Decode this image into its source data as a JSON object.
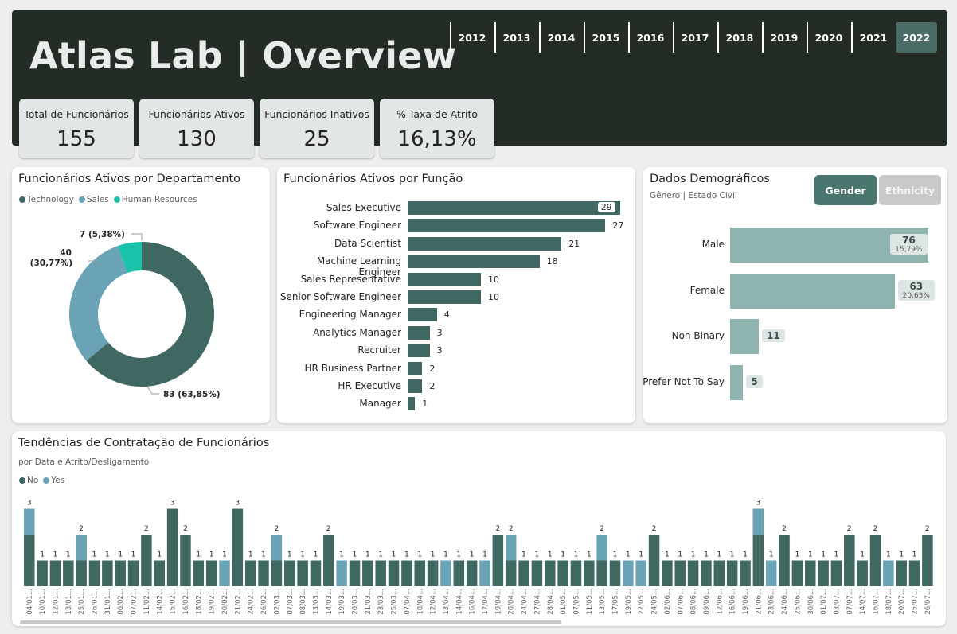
{
  "header": {
    "title": "Atlas Lab | Overview",
    "years": [
      "2012",
      "2013",
      "2014",
      "2015",
      "2016",
      "2017",
      "2018",
      "2019",
      "2020",
      "2021",
      "2022"
    ],
    "selected_year": "2022"
  },
  "kpis": [
    {
      "label": "Total de Funcionários",
      "value": "155"
    },
    {
      "label": "Funcionários Ativos",
      "value": "130"
    },
    {
      "label": "Funcionários Inativos",
      "value": "25"
    },
    {
      "label": "% Taxa de Atrito",
      "value": "16,13%"
    }
  ],
  "colors": {
    "dark": "#3f6863",
    "light": "#6aa2b6",
    "teal": "#19c2a8",
    "demo": "#8fb3ae",
    "header": "#232d26"
  },
  "dept_card": {
    "title": "Funcionários Ativos por Departamento"
  },
  "role_card": {
    "title": "Funcionários Ativos por Função"
  },
  "demo_card": {
    "title": "Dados Demográficos",
    "subtitle": "Gênero | Estado Civil",
    "tab_gender": "Gender",
    "tab_ethnicity": "Ethnicity"
  },
  "hire_card": {
    "title": "Tendências de Contratação de Funcionários",
    "subtitle": "por Data e Atrito/Desligamento"
  },
  "chart_data": [
    {
      "type": "pie",
      "title": "Funcionários Ativos por Departamento",
      "legend": [
        "Technology",
        "Sales",
        "Human Resources"
      ],
      "slices": [
        {
          "name": "Technology",
          "value": 83,
          "label": "83 (63,85%)"
        },
        {
          "name": "Sales",
          "value": 40,
          "label_line1": "40",
          "label_line2": "(30,77%)"
        },
        {
          "name": "Human Resources",
          "value": 7,
          "label": "7 (5,38%)"
        }
      ]
    },
    {
      "type": "bar",
      "title": "Funcionários Ativos por Função",
      "categories": [
        "Sales Executive",
        "Software Engineer",
        "Data Scientist",
        "Machine Learning Engineer",
        "Sales Representative",
        "Senior Software Engineer",
        "Engineering Manager",
        "Analytics Manager",
        "Recruiter",
        "HR Business Partner",
        "HR Executive",
        "Manager"
      ],
      "values": [
        29,
        27,
        21,
        18,
        10,
        10,
        4,
        3,
        3,
        2,
        2,
        1
      ]
    },
    {
      "type": "bar",
      "title": "Dados Demográficos",
      "categories": [
        "Male",
        "Female",
        "Non-Binary",
        "Prefer Not To Say"
      ],
      "values": [
        76,
        63,
        11,
        5
      ],
      "percent_labels": [
        "15,79%",
        "20,63%",
        "",
        ""
      ]
    },
    {
      "type": "bar",
      "title": "Tendências de Contratação de Funcionários",
      "legend": [
        "No",
        "Yes"
      ],
      "categories": [
        "04/01...",
        "10/01...",
        "12/01...",
        "13/01...",
        "25/01...",
        "26/01...",
        "31/01...",
        "06/02...",
        "07/02...",
        "11/02...",
        "14/02...",
        "15/02...",
        "16/02...",
        "18/02...",
        "19/02...",
        "20/02...",
        "21/02...",
        "24/02...",
        "26/02...",
        "02/03...",
        "07/03...",
        "08/03...",
        "13/03...",
        "14/03...",
        "19/03...",
        "20/03...",
        "21/03...",
        "23/03...",
        "25/03...",
        "07/04...",
        "10/04...",
        "12/04...",
        "13/04...",
        "14/04...",
        "16/04...",
        "17/04...",
        "19/04...",
        "20/04...",
        "24/04...",
        "27/04...",
        "28/04...",
        "01/05...",
        "07/05...",
        "11/05...",
        "13/05...",
        "17/05...",
        "19/05...",
        "22/05...",
        "24/05...",
        "02/06...",
        "07/06...",
        "08/06...",
        "09/06...",
        "12/06...",
        "16/06...",
        "19/06...",
        "21/06...",
        "23/06...",
        "24/06...",
        "25/06...",
        "30/06...",
        "01/07...",
        "03/07...",
        "07/07...",
        "14/07...",
        "16/07...",
        "18/07...",
        "20/07...",
        "25/07...",
        "26/07..."
      ],
      "series": [
        {
          "name": "No",
          "values": [
            2,
            1,
            1,
            1,
            1,
            1,
            1,
            1,
            1,
            2,
            1,
            3,
            2,
            1,
            1,
            0,
            3,
            1,
            1,
            1,
            1,
            1,
            1,
            2,
            0,
            1,
            1,
            1,
            1,
            1,
            1,
            1,
            0,
            1,
            1,
            0,
            2,
            1,
            1,
            1,
            1,
            1,
            1,
            1,
            1,
            1,
            0,
            0,
            2,
            1,
            1,
            1,
            1,
            1,
            1,
            1,
            2,
            0,
            2,
            1,
            1,
            1,
            1,
            2,
            1,
            2,
            0,
            1,
            1,
            2
          ]
        },
        {
          "name": "Yes",
          "values": [
            1,
            0,
            0,
            0,
            1,
            0,
            0,
            0,
            0,
            0,
            0,
            0,
            0,
            0,
            0,
            1,
            0,
            0,
            0,
            1,
            0,
            0,
            0,
            0,
            1,
            0,
            0,
            0,
            0,
            0,
            0,
            0,
            1,
            0,
            0,
            1,
            0,
            1,
            0,
            0,
            0,
            0,
            0,
            0,
            1,
            0,
            1,
            1,
            0,
            0,
            0,
            0,
            0,
            0,
            0,
            0,
            1,
            1,
            0,
            0,
            0,
            0,
            0,
            0,
            0,
            0,
            1,
            0,
            0,
            0
          ]
        }
      ]
    }
  ]
}
